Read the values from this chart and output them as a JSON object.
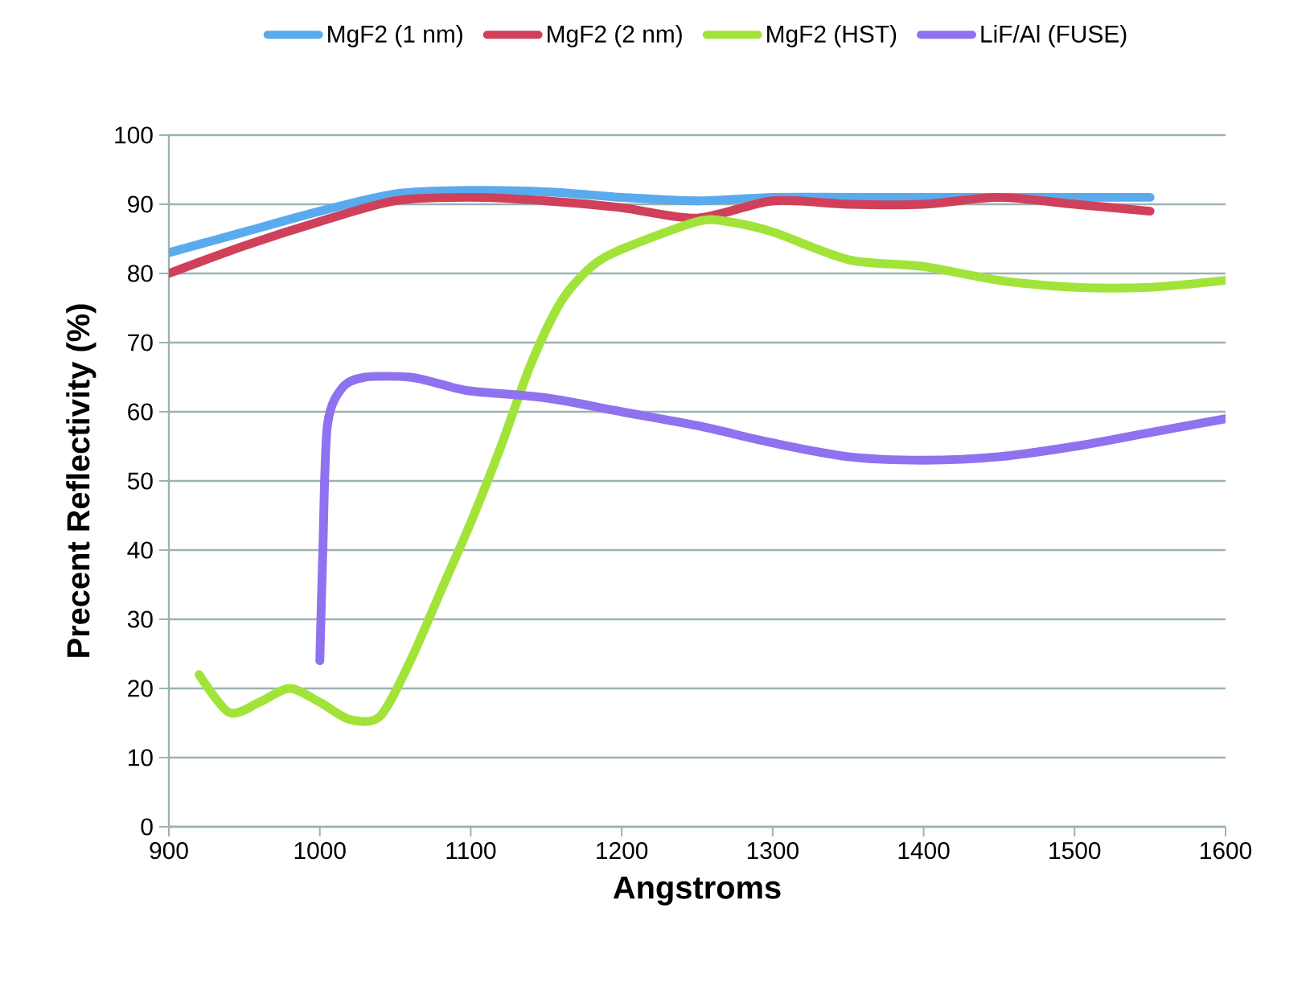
{
  "chart_data": {
    "type": "line",
    "xlabel": "Angstroms",
    "ylabel": "Precent Reflectivity (%)",
    "xlim": [
      900,
      1600
    ],
    "xticks": [
      900,
      1000,
      1100,
      1200,
      1300,
      1400,
      1500,
      1600
    ],
    "ylim": [
      0,
      100
    ],
    "yticks": [
      0,
      10,
      20,
      30,
      40,
      50,
      60,
      70,
      80,
      90,
      100
    ],
    "grid": "y",
    "legend": "top",
    "marker": "none",
    "line_style": "solid",
    "series": [
      {
        "name": "MgF2 (1 nm)",
        "color": "#5aaaee",
        "x": [
          900,
          950,
          1000,
          1050,
          1100,
          1150,
          1200,
          1250,
          1300,
          1350,
          1400,
          1450,
          1500,
          1550
        ],
        "values": [
          83,
          86,
          89,
          91.5,
          92,
          91.8,
          91,
          90.5,
          91,
          91,
          91,
          91,
          91,
          91
        ]
      },
      {
        "name": "MgF2 (2 nm)",
        "color": "#d0405a",
        "x": [
          900,
          950,
          1000,
          1050,
          1100,
          1150,
          1200,
          1250,
          1300,
          1350,
          1400,
          1450,
          1500,
          1550
        ],
        "values": [
          80,
          84,
          87.5,
          90.5,
          91,
          90.5,
          89.5,
          88,
          90.5,
          90,
          90,
          91,
          90,
          89
        ]
      },
      {
        "name": "MgF2 (HST)",
        "color": "#a2e33a",
        "x": [
          920,
          940,
          960,
          980,
          1000,
          1020,
          1040,
          1060,
          1080,
          1100,
          1120,
          1140,
          1160,
          1180,
          1200,
          1250,
          1270,
          1300,
          1350,
          1400,
          1450,
          1500,
          1550,
          1600
        ],
        "values": [
          22,
          16.5,
          18,
          20,
          18,
          15.5,
          16,
          24,
          34,
          44,
          55,
          67,
          76,
          81,
          83.5,
          87.5,
          87.5,
          86,
          82,
          81,
          79,
          78,
          78,
          79
        ]
      },
      {
        "name": "LiF/Al (FUSE)",
        "color": "#8f72ef",
        "x": [
          1000,
          1002,
          1005,
          1015,
          1030,
          1060,
          1080,
          1100,
          1150,
          1200,
          1250,
          1300,
          1350,
          1400,
          1450,
          1500,
          1550,
          1600
        ],
        "values": [
          24,
          40,
          58,
          63.5,
          65,
          65,
          64,
          63,
          62,
          60,
          58,
          55.5,
          53.5,
          53,
          53.5,
          55,
          57,
          59
        ]
      }
    ]
  }
}
